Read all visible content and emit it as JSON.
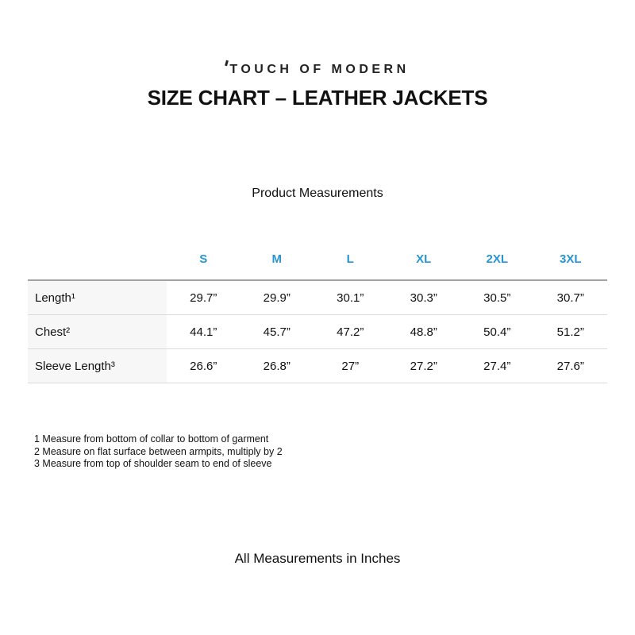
{
  "header": {
    "brand": "TOUCH OF MODERN",
    "title": "SIZE CHART – LEATHER JACKETS"
  },
  "table": {
    "caption": "Product Measurements"
  },
  "chart_data": {
    "type": "table",
    "title": "Product Measurements",
    "columns": [
      "",
      "S",
      "M",
      "L",
      "XL",
      "2XL",
      "3XL"
    ],
    "rows": [
      {
        "label": "Length¹",
        "values": [
          "29.7”",
          "29.9”",
          "30.1”",
          "30.3”",
          "30.5”",
          "30.7”"
        ]
      },
      {
        "label": "Chest²",
        "values": [
          "44.1”",
          "45.7”",
          "47.2”",
          "48.8”",
          "50.4”",
          "51.2”"
        ]
      },
      {
        "label": "Sleeve Length³",
        "values": [
          "26.6”",
          "26.8”",
          "27”",
          "27.2”",
          "27.4”",
          "27.6”"
        ]
      }
    ],
    "units": "inches"
  },
  "footnotes": [
    "1 Measure from bottom of collar to bottom of garment",
    "2 Measure on flat surface between armpits, multiply by 2",
    "3 Measure from top of shoulder seam to end of sleeve"
  ],
  "footer": {
    "note": "All Measurements in Inches"
  },
  "colors": {
    "accent_blue": "#2795d3",
    "label_column_bg": "#f7f7f7",
    "header_rule": "#a3a3a3",
    "row_rule": "#dadada",
    "text": "#1a1a1a",
    "background": "#ffffff"
  }
}
